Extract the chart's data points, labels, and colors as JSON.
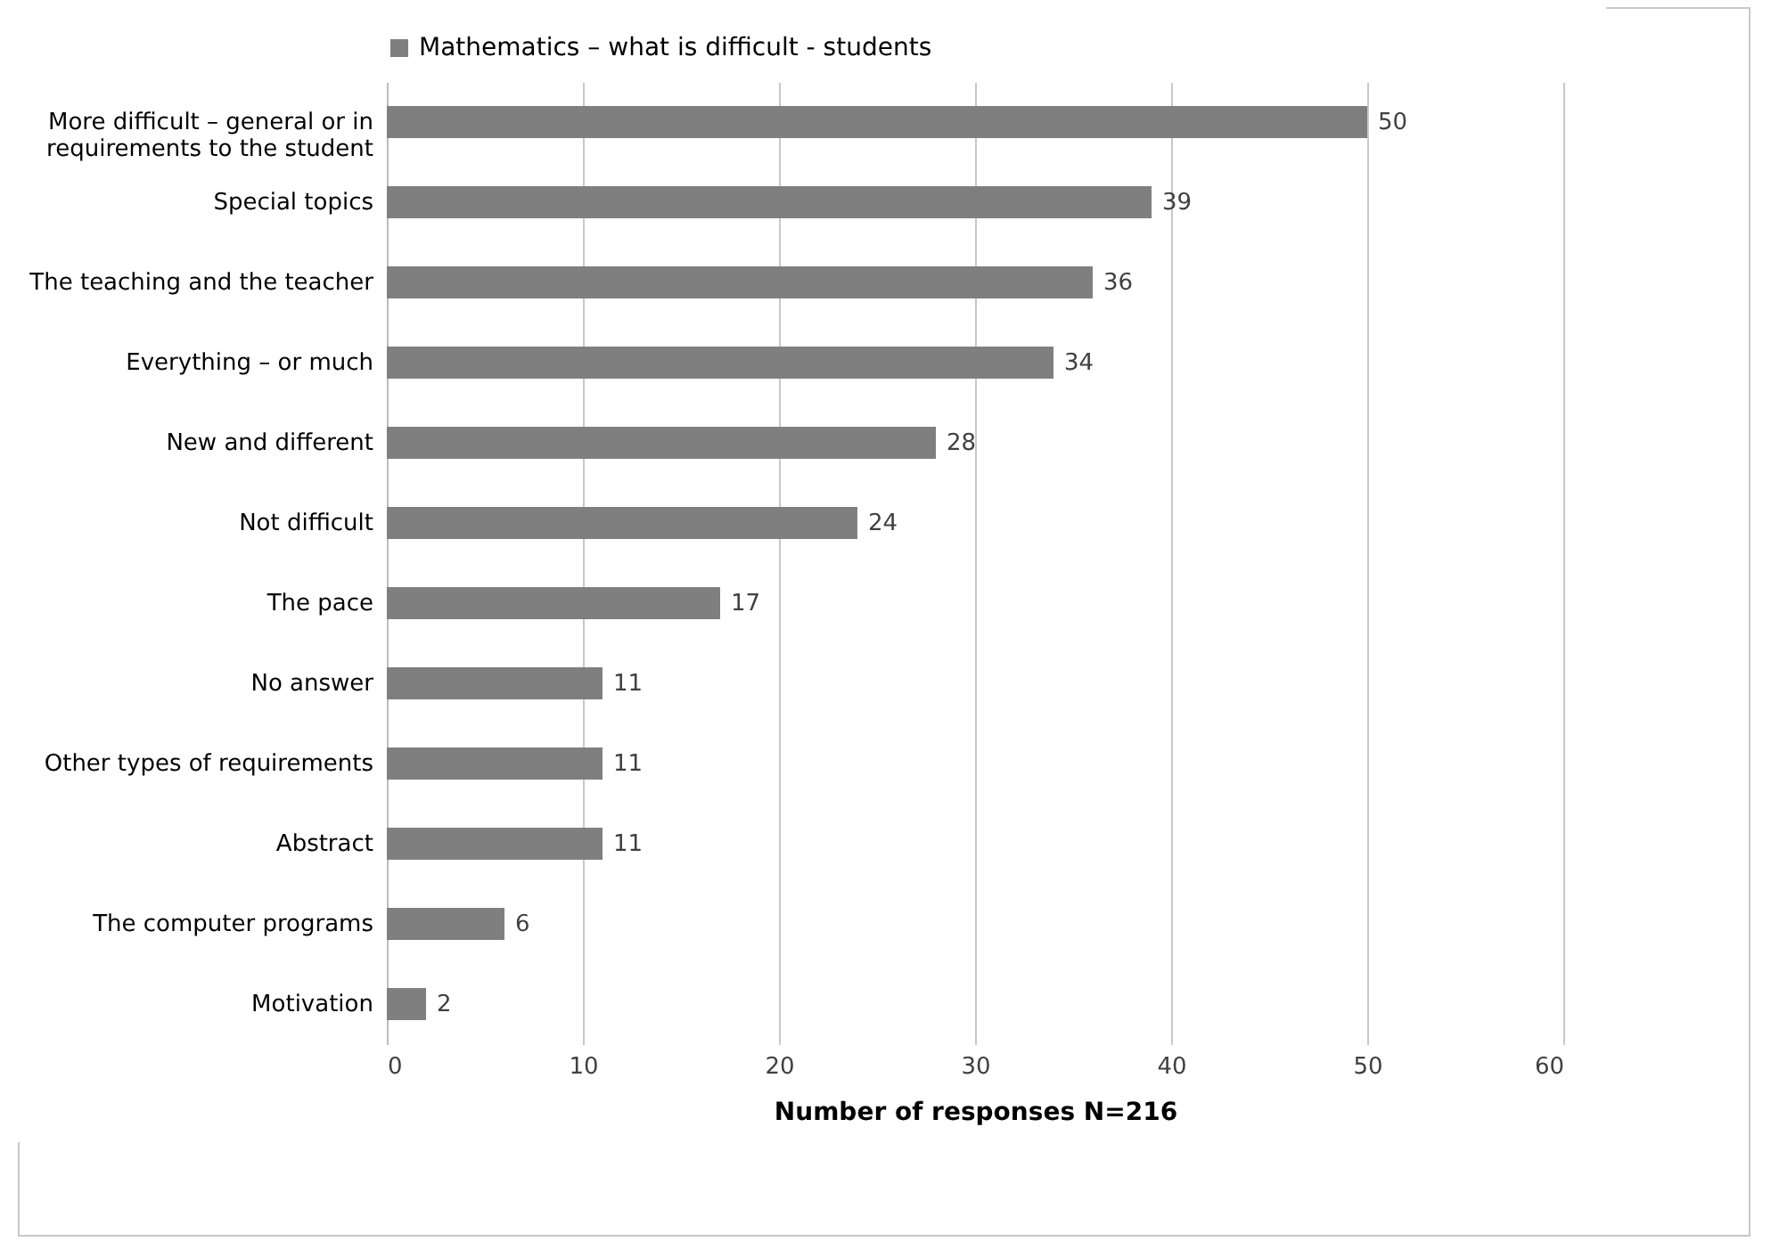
{
  "chart_data": {
    "type": "bar",
    "orientation": "horizontal",
    "xlabel": "Number of responses N=216",
    "categories": [
      "More difficult – general or in requirements to the student",
      "Special topics",
      "The teaching and the teacher",
      "Everything – or much",
      "New and different",
      "Not difficult",
      "The pace",
      "No answer",
      "Other types of requirements",
      "Abstract",
      "The computer programs",
      "Motivation"
    ],
    "series": [
      {
        "name": "Mathematics – what is difficult - students",
        "color": "#7f7f7f",
        "values": [
          50,
          39,
          36,
          34,
          28,
          24,
          17,
          11,
          11,
          11,
          6,
          2
        ]
      }
    ],
    "xlim": [
      0,
      60
    ],
    "xticks": [
      0,
      10,
      20,
      30,
      40,
      50,
      60
    ],
    "grid": "x",
    "legend": "top",
    "data_labels": true
  }
}
